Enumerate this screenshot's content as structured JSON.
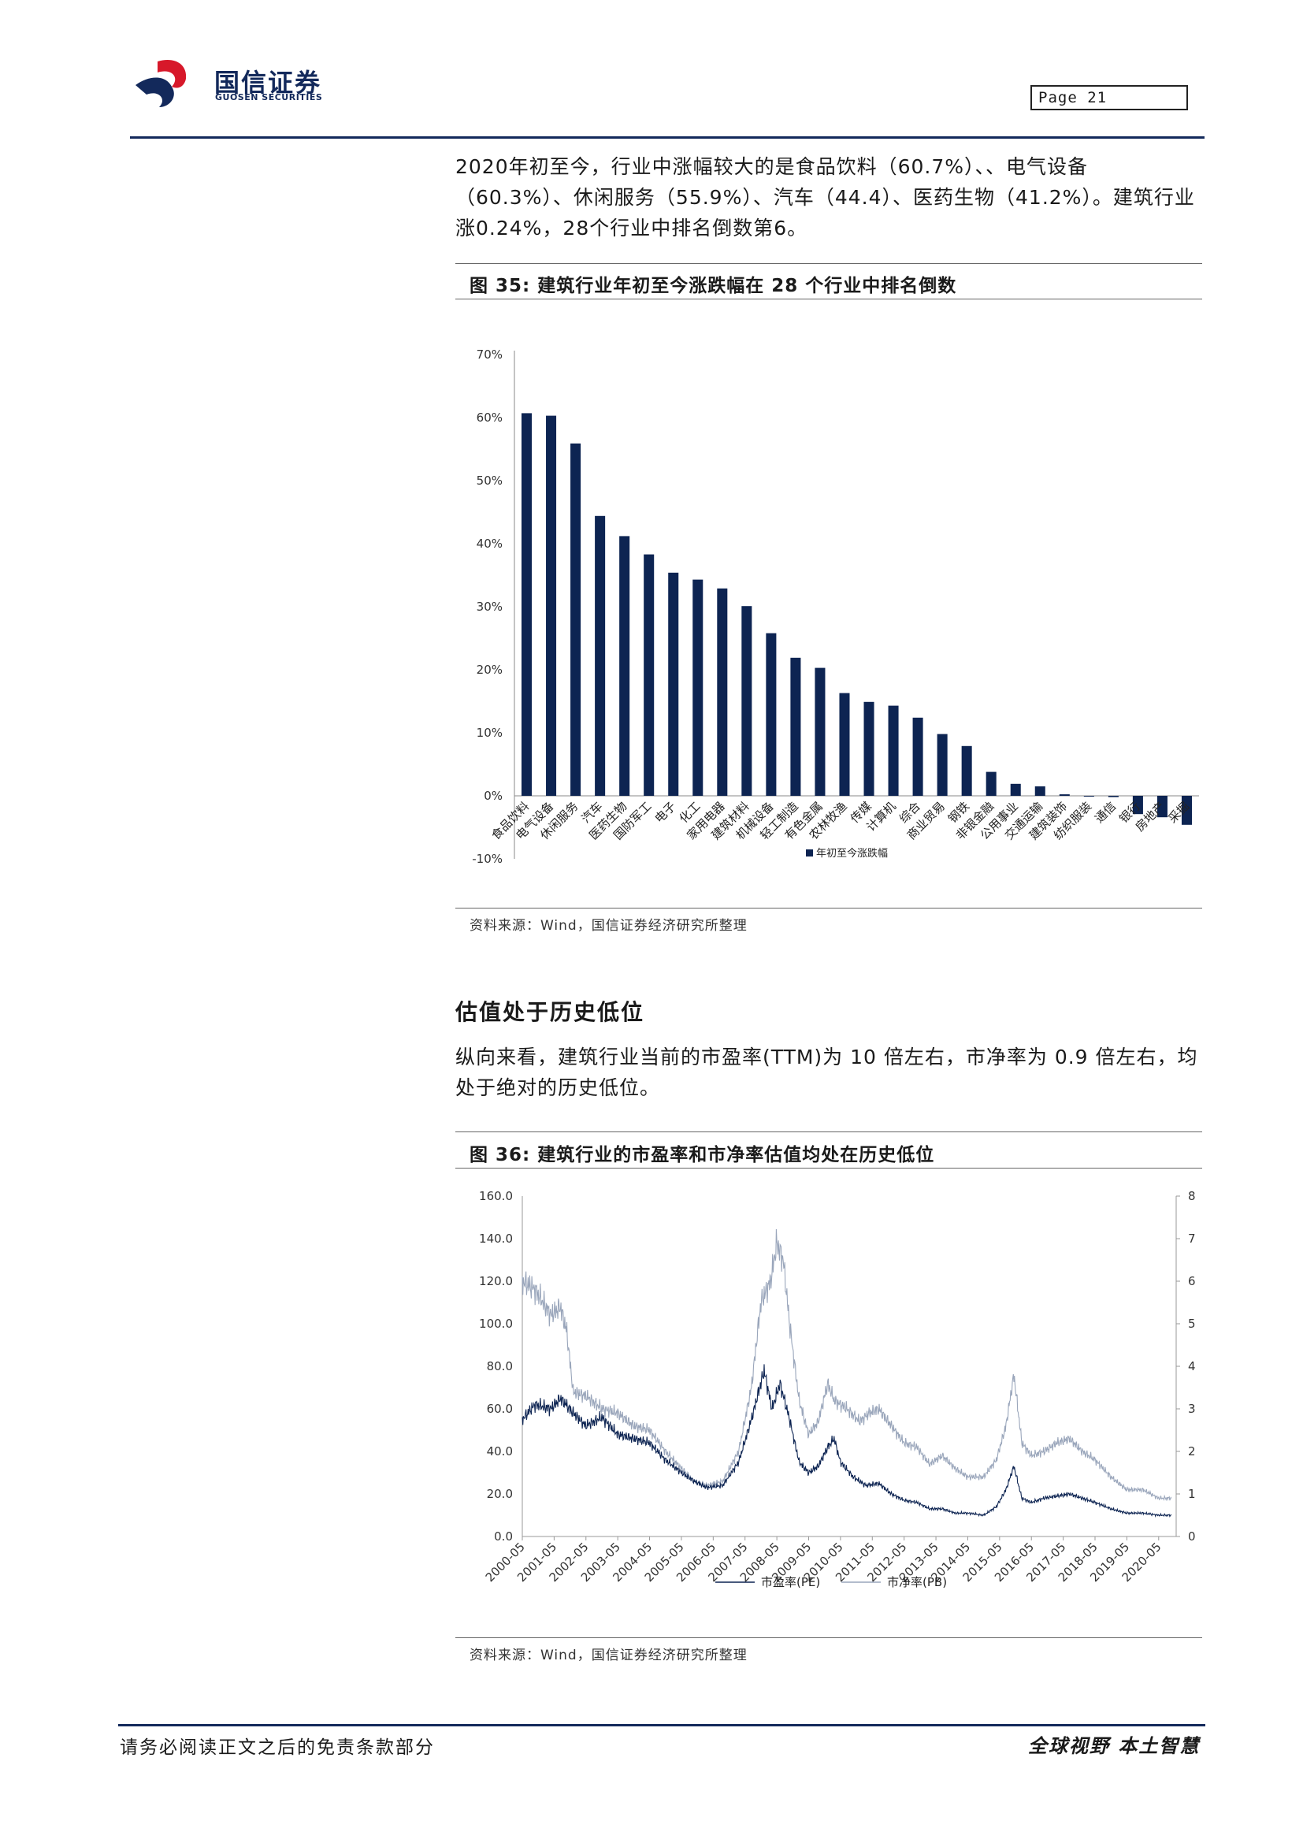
{
  "header": {
    "brand_cn": "国信证券",
    "brand_en": "GUOSEN SECURITIES",
    "page_label": "Page  21",
    "colors": {
      "brand_red": "#d7182a",
      "brand_navy": "#13295b"
    }
  },
  "paragraph1": "2020年初至今，行业中涨幅较大的是食品饮料（60.7%）、、电气设备（60.3%）、休闲服务（55.9%）、汽车（44.4）、医药生物（41.2%）。建筑行业涨0.24%，28个行业中排名倒数第6。",
  "figure35": {
    "caption": "图 35: 建筑行业年初至今涨跌幅在 28 个行业中排名倒数",
    "source": "资料来源：Wind，国信证券经济研究所整理"
  },
  "section_heading": "估值处于历史低位",
  "paragraph2": "纵向来看，建筑行业当前的市盈率(TTM)为 10 倍左右，市净率为 0.9 倍左右，均处于绝对的历史低位。",
  "figure36": {
    "caption": "图 36: 建筑行业的市盈率和市净率估值均处在历史低位",
    "source": "资料来源：Wind，国信证券经济研究所整理"
  },
  "footer": {
    "left": "请务必阅读正文之后的免责条款部分",
    "right": "全球视野  本土智慧"
  },
  "chart_data": [
    {
      "type": "bar",
      "categories": [
        "食品饮料",
        "电气设备",
        "休闲服务",
        "汽车",
        "医药生物",
        "国防军工",
        "电子",
        "化工",
        "家用电器",
        "建筑材料",
        "机械设备",
        "轻工制造",
        "有色金属",
        "农林牧渔",
        "传媒",
        "计算机",
        "综合",
        "商业贸易",
        "钢铁",
        "非银金融",
        "公用事业",
        "交通运输",
        "建筑装饰",
        "纺织服装",
        "通信",
        "银行",
        "房地产",
        "采掘"
      ],
      "series": [
        {
          "name": "年初至今涨跌幅",
          "values": [
            60.7,
            60.3,
            55.9,
            44.4,
            41.2,
            38.3,
            35.4,
            34.3,
            32.9,
            30.1,
            25.8,
            21.9,
            20.3,
            16.3,
            14.9,
            14.3,
            12.4,
            9.8,
            7.9,
            3.8,
            1.9,
            1.5,
            0.24,
            -0.1,
            -0.2,
            -2.9,
            -3.4,
            -4.6
          ]
        }
      ],
      "yticks": [
        "70%",
        "60%",
        "50%",
        "40%",
        "30%",
        "20%",
        "10%",
        "0%",
        "-10%"
      ],
      "ylim": [
        -10,
        70
      ],
      "bar_color": "#0d2452",
      "legend_position": "bottom-center"
    },
    {
      "type": "line",
      "x_ticks": [
        "2000-05",
        "2001-05",
        "2002-05",
        "2003-05",
        "2004-05",
        "2005-05",
        "2006-05",
        "2007-05",
        "2008-05",
        "2009-05",
        "2010-05",
        "2011-05",
        "2012-05",
        "2013-05",
        "2014-05",
        "2015-05",
        "2016-05",
        "2017-05",
        "2018-05",
        "2019-05",
        "2020-05"
      ],
      "y_left_ticks": [
        "160.0",
        "140.0",
        "120.0",
        "100.0",
        "80.0",
        "60.0",
        "40.0",
        "20.0",
        "0.0"
      ],
      "y_right_ticks": [
        "8",
        "7",
        "6",
        "5",
        "4",
        "3",
        "2",
        "1",
        "0"
      ],
      "ylim_left": [
        0,
        160
      ],
      "ylim_right": [
        0,
        8
      ],
      "series": [
        {
          "name": "市盈率(PE)",
          "axis": "left",
          "color": "#0d2452",
          "points": [
            [
              2000.0,
              55
            ],
            [
              2000.4,
              62
            ],
            [
              2000.9,
              60
            ],
            [
              2001.2,
              65
            ],
            [
              2001.6,
              58
            ],
            [
              2002.0,
              52
            ],
            [
              2002.5,
              56
            ],
            [
              2003.0,
              48
            ],
            [
              2003.5,
              46
            ],
            [
              2004.0,
              44
            ],
            [
              2004.5,
              36
            ],
            [
              2005.0,
              30
            ],
            [
              2005.4,
              26
            ],
            [
              2005.8,
              23
            ],
            [
              2006.3,
              24
            ],
            [
              2006.8,
              35
            ],
            [
              2007.2,
              55
            ],
            [
              2007.6,
              78
            ],
            [
              2007.85,
              60
            ],
            [
              2008.1,
              72
            ],
            [
              2008.4,
              55
            ],
            [
              2008.7,
              35
            ],
            [
              2009.0,
              30
            ],
            [
              2009.3,
              33
            ],
            [
              2009.6,
              42
            ],
            [
              2009.8,
              46
            ],
            [
              2010.0,
              35
            ],
            [
              2010.4,
              28
            ],
            [
              2010.8,
              24
            ],
            [
              2011.2,
              25
            ],
            [
              2011.6,
              20
            ],
            [
              2012.0,
              17
            ],
            [
              2012.4,
              16
            ],
            [
              2012.8,
              13
            ],
            [
              2013.2,
              13
            ],
            [
              2013.6,
              11
            ],
            [
              2014.0,
              11
            ],
            [
              2014.5,
              10
            ],
            [
              2014.9,
              14
            ],
            [
              2015.2,
              22
            ],
            [
              2015.45,
              33
            ],
            [
              2015.7,
              18
            ],
            [
              2016.0,
              16
            ],
            [
              2016.4,
              18
            ],
            [
              2016.8,
              19
            ],
            [
              2017.2,
              20
            ],
            [
              2017.6,
              18
            ],
            [
              2018.0,
              16
            ],
            [
              2018.5,
              13
            ],
            [
              2019.0,
              11
            ],
            [
              2019.5,
              11
            ],
            [
              2020.0,
              10
            ],
            [
              2020.4,
              10
            ]
          ]
        },
        {
          "name": "市净率(PB)",
          "axis": "right",
          "color": "#9aa6bb",
          "points": [
            [
              2000.0,
              6.0
            ],
            [
              2000.4,
              5.8
            ],
            [
              2000.9,
              5.2
            ],
            [
              2001.2,
              5.4
            ],
            [
              2001.4,
              4.8
            ],
            [
              2001.6,
              3.4
            ],
            [
              2002.0,
              3.3
            ],
            [
              2002.5,
              3.0
            ],
            [
              2003.0,
              2.9
            ],
            [
              2003.5,
              2.6
            ],
            [
              2004.0,
              2.5
            ],
            [
              2004.5,
              2.0
            ],
            [
              2005.0,
              1.6
            ],
            [
              2005.4,
              1.3
            ],
            [
              2005.8,
              1.2
            ],
            [
              2006.3,
              1.3
            ],
            [
              2006.8,
              2.0
            ],
            [
              2007.2,
              3.5
            ],
            [
              2007.5,
              5.5
            ],
            [
              2007.8,
              6.0
            ],
            [
              2008.0,
              6.9
            ],
            [
              2008.2,
              6.5
            ],
            [
              2008.4,
              5.0
            ],
            [
              2008.7,
              3.2
            ],
            [
              2009.0,
              2.4
            ],
            [
              2009.3,
              2.7
            ],
            [
              2009.6,
              3.6
            ],
            [
              2009.8,
              3.2
            ],
            [
              2010.2,
              3.0
            ],
            [
              2010.6,
              2.7
            ],
            [
              2010.9,
              2.9
            ],
            [
              2011.2,
              3.0
            ],
            [
              2011.6,
              2.6
            ],
            [
              2012.0,
              2.2
            ],
            [
              2012.4,
              2.1
            ],
            [
              2012.8,
              1.7
            ],
            [
              2013.2,
              1.9
            ],
            [
              2013.6,
              1.6
            ],
            [
              2014.0,
              1.4
            ],
            [
              2014.5,
              1.4
            ],
            [
              2014.9,
              1.8
            ],
            [
              2015.2,
              2.6
            ],
            [
              2015.45,
              3.8
            ],
            [
              2015.7,
              2.2
            ],
            [
              2016.0,
              1.9
            ],
            [
              2016.4,
              2.0
            ],
            [
              2016.8,
              2.2
            ],
            [
              2017.2,
              2.3
            ],
            [
              2017.6,
              2.0
            ],
            [
              2018.0,
              1.8
            ],
            [
              2018.5,
              1.4
            ],
            [
              2019.0,
              1.1
            ],
            [
              2019.5,
              1.1
            ],
            [
              2020.0,
              0.9
            ],
            [
              2020.4,
              0.9
            ]
          ]
        }
      ]
    }
  ]
}
